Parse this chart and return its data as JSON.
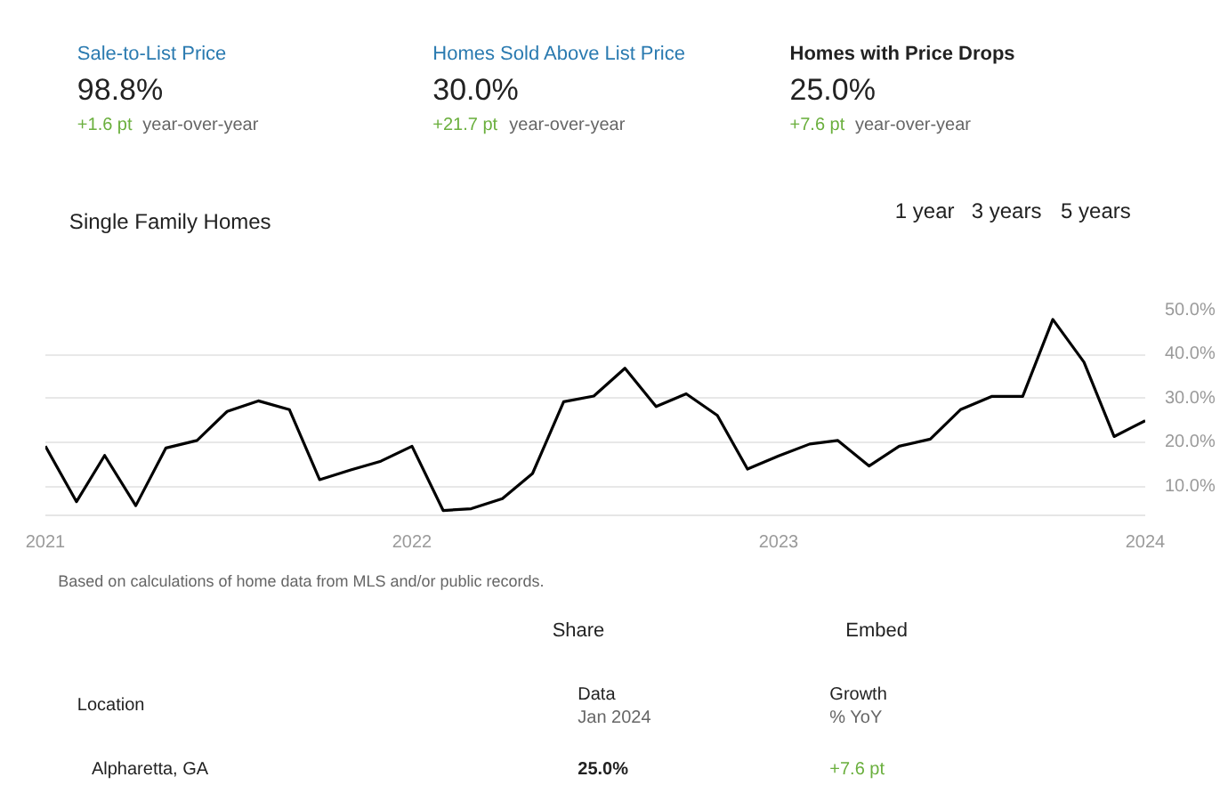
{
  "chart_data": {
    "type": "line",
    "title": "Homes with Price Drops",
    "x": [
      "2021-01",
      "2021-02",
      "2021-03",
      "2021-04",
      "2021-05",
      "2021-06",
      "2021-07",
      "2021-08",
      "2021-09",
      "2021-10",
      "2021-11",
      "2021-12",
      "2022-01",
      "2022-02",
      "2022-03",
      "2022-04",
      "2022-05",
      "2022-06",
      "2022-07",
      "2022-08",
      "2022-09",
      "2022-10",
      "2022-11",
      "2022-12",
      "2023-01",
      "2023-02",
      "2023-03",
      "2023-04",
      "2023-05",
      "2023-06",
      "2023-07",
      "2023-08",
      "2023-09",
      "2023-10",
      "2023-11",
      "2023-12",
      "2024-01"
    ],
    "series": [
      {
        "color": "#000000",
        "values": [
          19.2,
          6.6,
          17.1,
          5.7,
          18.8,
          20.5,
          27.1,
          29.5,
          27.5,
          11.6,
          13.8,
          15.8,
          19.2,
          4.6,
          5.0,
          7.3,
          13.0,
          29.3,
          30.6,
          36.9,
          28.2,
          31.1,
          26.2,
          14.0,
          17.0,
          19.7,
          20.5,
          14.7,
          19.2,
          20.8,
          27.5,
          30.5,
          30.5,
          48.0,
          38.3,
          21.4,
          25.0
        ]
      }
    ],
    "xlim": [
      "2021-01",
      "2024-01"
    ],
    "xticks": [
      {
        "value": "2021-01",
        "label": "2021"
      },
      {
        "value": "2022-01",
        "label": "2022"
      },
      {
        "value": "2023-01",
        "label": "2023"
      },
      {
        "value": "2024-01",
        "label": "2024"
      }
    ],
    "ylim": [
      3.5,
      50
    ],
    "yticks": [
      {
        "value": 10,
        "label": "10.0%"
      },
      {
        "value": 20,
        "label": "20.0%"
      },
      {
        "value": 30,
        "label": "30.0%"
      },
      {
        "value": 40,
        "label": "40.0%"
      },
      {
        "value": 50,
        "label": "50.0%"
      }
    ],
    "grid": "y",
    "marker": "none",
    "line_style": "solid",
    "annotations": [
      "Sale-to-List Price",
      "98.8%",
      "+1.6 pt",
      "year-over-year",
      "Homes Sold Above List Price",
      "30.0%",
      "+21.7 pt",
      "year-over-year",
      "25.0%",
      "+7.6 pt",
      "year-over-year",
      "Single Family Homes",
      "1 year",
      "3 years",
      "5 years",
      "Based on calculations of home data from MLS and/or public records.",
      "Share",
      "Embed",
      "Location",
      "Data",
      "Jan 2024",
      "Growth",
      "% YoY",
      "Alpharetta, GA",
      "25.0%",
      "+7.6 pt"
    ]
  }
}
